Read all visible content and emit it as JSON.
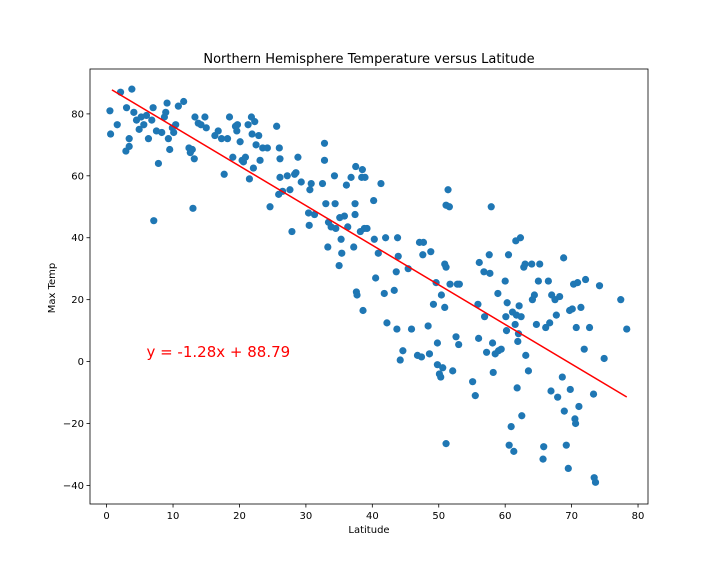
{
  "chart_data": {
    "type": "scatter",
    "title": "Northern Hemisphere Temperature versus Latitude",
    "xlabel": "Latitude",
    "ylabel": "Max Temp",
    "xlim": [
      -2.5,
      81.5
    ],
    "ylim": [
      -46,
      94.5
    ],
    "xticks": [
      0,
      10,
      20,
      30,
      40,
      50,
      60,
      70,
      80
    ],
    "yticks": [
      -40,
      -20,
      0,
      20,
      40,
      60,
      80
    ],
    "ytick_labels": [
      "−40",
      "−20",
      "0",
      "20",
      "40",
      "60",
      "80"
    ],
    "grid": false,
    "point_color": "#1f77b4",
    "regression": {
      "slope": -1.28,
      "intercept": 88.79,
      "x_range": [
        0.8,
        78.3
      ],
      "color": "#ff0000",
      "equation": "y = -1.28x + 88.79",
      "label_x": 6,
      "label_y": 1.5
    },
    "points": [
      [
        0.5,
        81
      ],
      [
        0.6,
        73.5
      ],
      [
        1.6,
        76.5
      ],
      [
        2.1,
        87
      ],
      [
        2.9,
        68
      ],
      [
        3.0,
        82
      ],
      [
        3.4,
        72
      ],
      [
        3.4,
        69.5
      ],
      [
        3.8,
        88
      ],
      [
        4.1,
        80.5
      ],
      [
        4.5,
        78
      ],
      [
        4.9,
        75
      ],
      [
        5.2,
        79
      ],
      [
        5.6,
        76.5
      ],
      [
        6.0,
        79.5
      ],
      [
        6.3,
        72
      ],
      [
        6.8,
        78
      ],
      [
        7.0,
        82
      ],
      [
        7.1,
        45.5
      ],
      [
        7.5,
        74.5
      ],
      [
        7.8,
        64
      ],
      [
        8.3,
        74
      ],
      [
        8.7,
        79
      ],
      [
        8.9,
        80.5
      ],
      [
        9.1,
        83.5
      ],
      [
        9.3,
        72
      ],
      [
        9.5,
        68.5
      ],
      [
        9.9,
        75.5
      ],
      [
        10.1,
        74
      ],
      [
        10.4,
        76.5
      ],
      [
        10.8,
        82.5
      ],
      [
        11.6,
        84
      ],
      [
        12.4,
        69
      ],
      [
        12.6,
        67.5
      ],
      [
        12.9,
        68.5
      ],
      [
        13.0,
        49.5
      ],
      [
        13.2,
        65.5
      ],
      [
        13.3,
        79
      ],
      [
        13.8,
        77
      ],
      [
        14.2,
        76.5
      ],
      [
        14.8,
        79
      ],
      [
        15.0,
        75.5
      ],
      [
        16.3,
        73
      ],
      [
        16.8,
        74.5
      ],
      [
        17.3,
        72
      ],
      [
        17.7,
        60.5
      ],
      [
        18.2,
        72
      ],
      [
        18.5,
        79
      ],
      [
        19.0,
        66
      ],
      [
        19.4,
        76
      ],
      [
        19.6,
        74.5
      ],
      [
        19.7,
        76.5
      ],
      [
        20.1,
        71
      ],
      [
        20.4,
        65
      ],
      [
        20.6,
        64.5
      ],
      [
        20.9,
        66
      ],
      [
        21.3,
        76.5
      ],
      [
        21.5,
        59
      ],
      [
        21.8,
        79
      ],
      [
        21.9,
        73.5
      ],
      [
        22.1,
        62.5
      ],
      [
        22.3,
        77.5
      ],
      [
        22.5,
        70
      ],
      [
        22.9,
        73
      ],
      [
        23.1,
        65
      ],
      [
        23.5,
        69
      ],
      [
        24.2,
        69
      ],
      [
        24.6,
        50
      ],
      [
        25.6,
        76
      ],
      [
        25.9,
        54
      ],
      [
        26.1,
        59.5
      ],
      [
        26.0,
        69
      ],
      [
        26.1,
        65.5
      ],
      [
        26.5,
        55
      ],
      [
        27.2,
        60
      ],
      [
        27.6,
        55.5
      ],
      [
        27.9,
        42
      ],
      [
        28.3,
        60.5
      ],
      [
        28.5,
        61
      ],
      [
        28.8,
        66
      ],
      [
        29.3,
        58
      ],
      [
        30.4,
        48
      ],
      [
        30.5,
        44
      ],
      [
        30.6,
        55.5
      ],
      [
        30.8,
        57.5
      ],
      [
        31.3,
        47.5
      ],
      [
        32.5,
        57.5
      ],
      [
        32.8,
        70.5
      ],
      [
        32.8,
        65
      ],
      [
        33.0,
        51
      ],
      [
        33.3,
        37
      ],
      [
        33.4,
        45
      ],
      [
        33.8,
        43.5
      ],
      [
        34.3,
        60
      ],
      [
        34.4,
        51
      ],
      [
        34.5,
        43
      ],
      [
        35.0,
        31
      ],
      [
        35.1,
        46.5
      ],
      [
        35.3,
        39.5
      ],
      [
        35.4,
        35
      ],
      [
        35.8,
        47
      ],
      [
        36.1,
        57
      ],
      [
        36.3,
        43.5
      ],
      [
        36.8,
        59.5
      ],
      [
        37.2,
        37
      ],
      [
        37.4,
        47.5
      ],
      [
        37.4,
        51
      ],
      [
        37.5,
        63
      ],
      [
        37.6,
        22.5
      ],
      [
        37.7,
        21.5
      ],
      [
        38.2,
        42
      ],
      [
        38.4,
        59.5
      ],
      [
        38.5,
        62
      ],
      [
        38.6,
        16.5
      ],
      [
        38.8,
        43
      ],
      [
        38.9,
        59.5
      ],
      [
        39.2,
        43
      ],
      [
        40.2,
        52
      ],
      [
        40.3,
        39.5
      ],
      [
        40.5,
        27
      ],
      [
        40.9,
        35
      ],
      [
        41.3,
        57.5
      ],
      [
        41.8,
        22
      ],
      [
        42.0,
        40
      ],
      [
        42.2,
        12.5
      ],
      [
        43.3,
        23
      ],
      [
        43.6,
        29
      ],
      [
        43.7,
        10.5
      ],
      [
        43.8,
        40
      ],
      [
        43.9,
        34
      ],
      [
        44.2,
        0.5
      ],
      [
        44.6,
        3.5
      ],
      [
        45.4,
        30
      ],
      [
        45.9,
        10.5
      ],
      [
        46.8,
        2
      ],
      [
        47.1,
        38.5
      ],
      [
        47.4,
        1.5
      ],
      [
        47.6,
        34.5
      ],
      [
        47.7,
        38.5
      ],
      [
        48.4,
        11.5
      ],
      [
        48.6,
        2.5
      ],
      [
        48.8,
        35.5
      ],
      [
        49.2,
        18.5
      ],
      [
        49.6,
        25.5
      ],
      [
        49.8,
        6
      ],
      [
        49.8,
        -1
      ],
      [
        50.1,
        -4
      ],
      [
        50.3,
        -5
      ],
      [
        50.4,
        21.5
      ],
      [
        50.6,
        -2
      ],
      [
        50.9,
        31.5
      ],
      [
        50.9,
        17.5
      ],
      [
        51.1,
        30.5
      ],
      [
        51.1,
        50.5
      ],
      [
        51.1,
        -26.5
      ],
      [
        51.4,
        55.5
      ],
      [
        51.6,
        50
      ],
      [
        51.7,
        25
      ],
      [
        52.1,
        -3
      ],
      [
        52.6,
        8
      ],
      [
        52.8,
        25
      ],
      [
        53.0,
        5.5
      ],
      [
        53.1,
        25
      ],
      [
        55.1,
        -6.5
      ],
      [
        55.5,
        -11
      ],
      [
        55.9,
        18.5
      ],
      [
        56.0,
        7.5
      ],
      [
        56.1,
        32
      ],
      [
        56.8,
        29
      ],
      [
        56.9,
        14.5
      ],
      [
        57.2,
        3
      ],
      [
        57.6,
        34.5
      ],
      [
        57.7,
        28.5
      ],
      [
        57.9,
        50
      ],
      [
        58.1,
        6
      ],
      [
        58.2,
        -3.5
      ],
      [
        58.5,
        2.5
      ],
      [
        58.9,
        22
      ],
      [
        59.0,
        3.5
      ],
      [
        59.4,
        4
      ],
      [
        60.0,
        26
      ],
      [
        60.1,
        14.5
      ],
      [
        60.2,
        10
      ],
      [
        60.3,
        19
      ],
      [
        60.5,
        34.5
      ],
      [
        60.6,
        -27
      ],
      [
        60.9,
        -21
      ],
      [
        61.1,
        16
      ],
      [
        61.3,
        -29
      ],
      [
        61.5,
        12
      ],
      [
        61.6,
        39
      ],
      [
        61.7,
        15
      ],
      [
        61.8,
        -8.5
      ],
      [
        61.9,
        6.5
      ],
      [
        62.0,
        9
      ],
      [
        62.1,
        18
      ],
      [
        62.3,
        40
      ],
      [
        62.4,
        14.5
      ],
      [
        62.5,
        -17.5
      ],
      [
        62.8,
        30.5
      ],
      [
        63.0,
        31.5
      ],
      [
        63.1,
        2
      ],
      [
        63.5,
        -3
      ],
      [
        64.0,
        31.5
      ],
      [
        64.1,
        20
      ],
      [
        64.4,
        21.5
      ],
      [
        64.7,
        12
      ],
      [
        65.0,
        26
      ],
      [
        65.2,
        31.5
      ],
      [
        65.7,
        -31.5
      ],
      [
        65.8,
        -27.5
      ],
      [
        66.1,
        11
      ],
      [
        66.5,
        26
      ],
      [
        66.7,
        12.5
      ],
      [
        66.9,
        -9.5
      ],
      [
        67.0,
        21.5
      ],
      [
        67.5,
        20
      ],
      [
        67.7,
        15
      ],
      [
        67.9,
        -11.5
      ],
      [
        68.2,
        21
      ],
      [
        68.6,
        -5
      ],
      [
        68.8,
        33.5
      ],
      [
        68.9,
        -16
      ],
      [
        69.2,
        -27
      ],
      [
        69.5,
        -34.5
      ],
      [
        69.7,
        16.5
      ],
      [
        69.8,
        -9
      ],
      [
        70.1,
        17
      ],
      [
        70.3,
        25
      ],
      [
        70.5,
        -18.5
      ],
      [
        70.6,
        -20
      ],
      [
        70.7,
        11
      ],
      [
        70.9,
        25.5
      ],
      [
        71.1,
        -14.5
      ],
      [
        71.4,
        17.5
      ],
      [
        71.9,
        4
      ],
      [
        72.1,
        26.5
      ],
      [
        72.7,
        11
      ],
      [
        73.3,
        -10.5
      ],
      [
        73.4,
        -37.5
      ],
      [
        73.6,
        -39
      ],
      [
        74.2,
        24.5
      ],
      [
        74.9,
        1
      ],
      [
        77.4,
        20
      ],
      [
        78.3,
        10.5
      ]
    ]
  }
}
